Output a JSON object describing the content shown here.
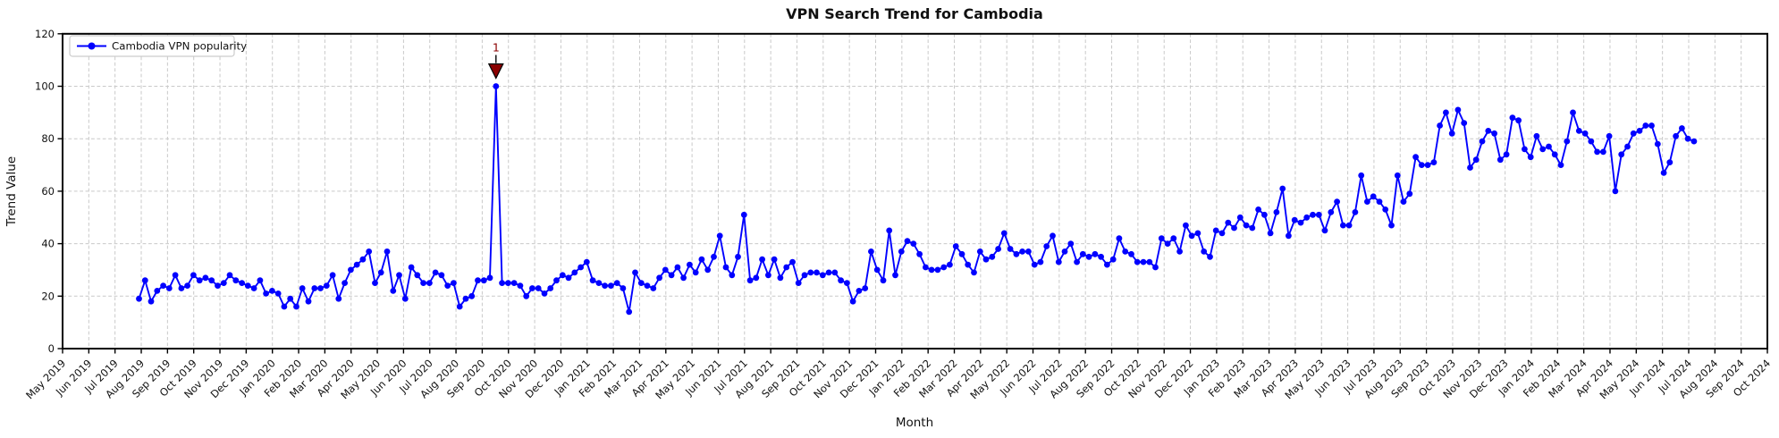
{
  "figure": {
    "colors": {
      "line": "#0000ff",
      "annotation": "#8b0000",
      "grid": "#c9c9c9",
      "spine": "#000000",
      "legend_border": "#cccccc",
      "background": "#ffffff"
    }
  },
  "chart_data": {
    "type": "line",
    "title": "VPN Search Trend for Cambodia",
    "xlabel": "Month",
    "ylabel": "Trend Value",
    "ylim": [
      0,
      120
    ],
    "yticks": [
      0,
      20,
      40,
      60,
      80,
      100,
      120
    ],
    "grid": true,
    "legend_position": "upper left",
    "x_tick_labels": [
      "May 2019",
      "Jun 2019",
      "Jul 2019",
      "Aug 2019",
      "Sep 2019",
      "Oct 2019",
      "Nov 2019",
      "Dec 2019",
      "Jan 2020",
      "Feb 2020",
      "Mar 2020",
      "Apr 2020",
      "May 2020",
      "Jun 2020",
      "Jul 2020",
      "Aug 2020",
      "Sep 2020",
      "Oct 2020",
      "Nov 2020",
      "Dec 2020",
      "Jan 2021",
      "Feb 2021",
      "Mar 2021",
      "Apr 2021",
      "May 2021",
      "Jun 2021",
      "Jul 2021",
      "Aug 2021",
      "Sep 2021",
      "Oct 2021",
      "Nov 2021",
      "Dec 2021",
      "Jan 2022",
      "Feb 2022",
      "Mar 2022",
      "Apr 2022",
      "May 2022",
      "Jun 2022",
      "Jul 2022",
      "Aug 2022",
      "Sep 2022",
      "Oct 2022",
      "Nov 2022",
      "Dec 2022",
      "Jan 2023",
      "Feb 2023",
      "Mar 2023",
      "Apr 2023",
      "May 2023",
      "Jun 2023",
      "Jul 2023",
      "Aug 2023",
      "Sep 2023",
      "Oct 2023",
      "Nov 2023",
      "Dec 2023",
      "Jan 2024",
      "Feb 2024",
      "Mar 2024",
      "Apr 2024",
      "May 2024",
      "Jun 2024",
      "Jul 2024",
      "Aug 2024",
      "Sep 2024",
      "Oct 2024"
    ],
    "series": [
      {
        "name": "Cambodia VPN popularity",
        "color": "#0000ff",
        "marker": "o",
        "interval": "weekly",
        "start_week": "2019-07-28",
        "end_week": "2024-06-30",
        "n_points": 258,
        "values": [
          19,
          26,
          18,
          22,
          24,
          23,
          28,
          23,
          24,
          28,
          26,
          27,
          26,
          24,
          25,
          28,
          26,
          25,
          24,
          23,
          26,
          21,
          22,
          21,
          16,
          19,
          16,
          23,
          18,
          23,
          23,
          24,
          28,
          19,
          25,
          30,
          32,
          34,
          37,
          25,
          29,
          37,
          22,
          28,
          19,
          31,
          28,
          25,
          25,
          29,
          28,
          24,
          25,
          16,
          19,
          20,
          26,
          26,
          27,
          100,
          25,
          25,
          25,
          24,
          20,
          23,
          23,
          21,
          23,
          26,
          28,
          27,
          29,
          31,
          33,
          26,
          25,
          24,
          24,
          25,
          23,
          14,
          29,
          25,
          24,
          23,
          27,
          30,
          28,
          31,
          27,
          32,
          29,
          34,
          30,
          35,
          43,
          31,
          28,
          35,
          51,
          26,
          27,
          34,
          28,
          34,
          27,
          31,
          33,
          25,
          28,
          29,
          29,
          28,
          29,
          29,
          26,
          25,
          18,
          22,
          23,
          37,
          30,
          26,
          45,
          28,
          37,
          41,
          40,
          36,
          31,
          30,
          30,
          31,
          32,
          39,
          36,
          32,
          29,
          37,
          34,
          35,
          38,
          44,
          38,
          36,
          37,
          37,
          32,
          33,
          39,
          43,
          33,
          37,
          40,
          33,
          36,
          35,
          36,
          35,
          32,
          34,
          42,
          37,
          36,
          33,
          33,
          33,
          31,
          42,
          40,
          42,
          37,
          47,
          43,
          44,
          37,
          35,
          45,
          44,
          48,
          46,
          50,
          47,
          46,
          53,
          51,
          44,
          52,
          61,
          43,
          49,
          48,
          50,
          51,
          51,
          45,
          52,
          56,
          47,
          47,
          52,
          66,
          56,
          58,
          56,
          53,
          47,
          66,
          56,
          59,
          73,
          70,
          70,
          71,
          85,
          90,
          82,
          91,
          86,
          69,
          72,
          79,
          83,
          82,
          72,
          74,
          88,
          87,
          76,
          73,
          81,
          76,
          77,
          74,
          70,
          79,
          90,
          83,
          82,
          79,
          75,
          75,
          81,
          60,
          74,
          77,
          82,
          83,
          85,
          85,
          78,
          67,
          71,
          81,
          84,
          80,
          79
        ]
      }
    ],
    "annotations": [
      {
        "label": "1",
        "series": "Cambodia VPN popularity",
        "point_index": 59,
        "value": 100,
        "marker": "triangle-down",
        "color": "#8b0000"
      }
    ]
  }
}
